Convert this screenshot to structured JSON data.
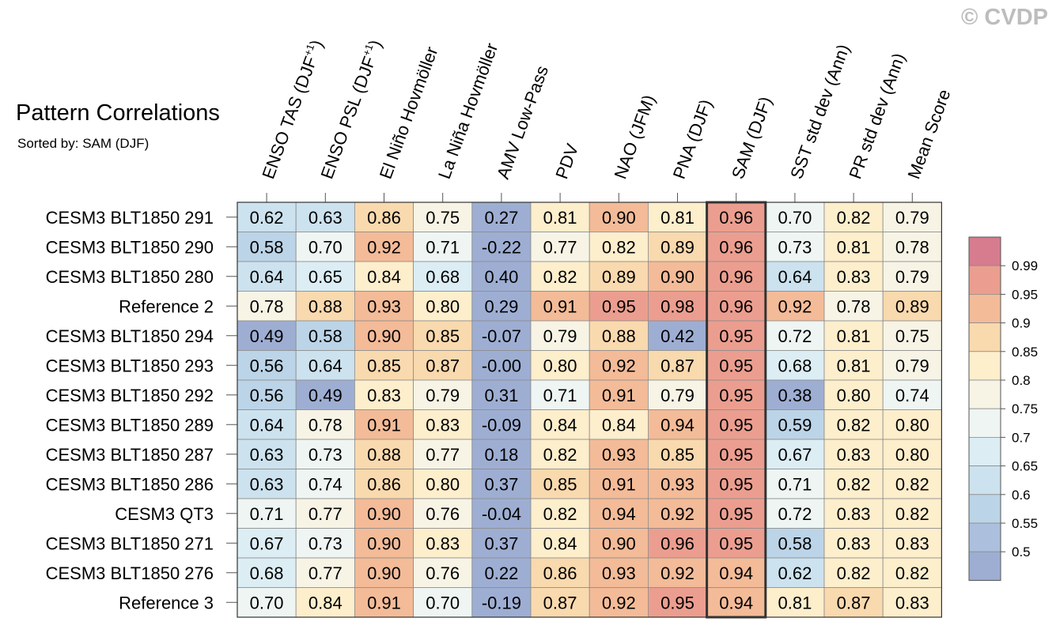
{
  "watermark": "© CVDP",
  "chart_data": {
    "type": "heatmap",
    "title": "Pattern Correlations",
    "subtitle": "Sorted by: SAM (DJF)",
    "columns": [
      {
        "main": "ENSO TAS (DJF",
        "sup": "+1",
        "tail": ")"
      },
      {
        "main": "ENSO PSL (DJF",
        "sup": "+1",
        "tail": ")"
      },
      {
        "main": "El Niño Hovmöller",
        "sup": "",
        "tail": ""
      },
      {
        "main": "La Niña Hovmöller",
        "sup": "",
        "tail": ""
      },
      {
        "main": "AMV Low-Pass",
        "sup": "",
        "tail": ""
      },
      {
        "main": "PDV",
        "sup": "",
        "tail": ""
      },
      {
        "main": "NAO (JFM)",
        "sup": "",
        "tail": ""
      },
      {
        "main": "PNA (DJF)",
        "sup": "",
        "tail": ""
      },
      {
        "main": "SAM (DJF)",
        "sup": "",
        "tail": ""
      },
      {
        "main": "SST std dev (Ann)",
        "sup": "",
        "tail": ""
      },
      {
        "main": "PR std dev (Ann)",
        "sup": "",
        "tail": ""
      },
      {
        "main": "Mean Score",
        "sup": "",
        "tail": ""
      }
    ],
    "rows": [
      {
        "name": "CESM3 BLT1850 291",
        "values": [
          "0.62",
          "0.63",
          "0.86",
          "0.75",
          "0.27",
          "0.81",
          "0.90",
          "0.81",
          "0.96",
          "0.70",
          "0.82",
          "0.79"
        ]
      },
      {
        "name": "CESM3 BLT1850 290",
        "values": [
          "0.58",
          "0.70",
          "0.92",
          "0.71",
          "-0.22",
          "0.77",
          "0.82",
          "0.89",
          "0.96",
          "0.73",
          "0.81",
          "0.78"
        ]
      },
      {
        "name": "CESM3 BLT1850 280",
        "values": [
          "0.64",
          "0.65",
          "0.84",
          "0.68",
          "0.40",
          "0.82",
          "0.89",
          "0.90",
          "0.96",
          "0.64",
          "0.83",
          "0.79"
        ]
      },
      {
        "name": "Reference 2",
        "values": [
          "0.78",
          "0.88",
          "0.93",
          "0.80",
          "0.29",
          "0.91",
          "0.95",
          "0.98",
          "0.96",
          "0.92",
          "0.78",
          "0.89"
        ]
      },
      {
        "name": "CESM3 BLT1850 294",
        "values": [
          "0.49",
          "0.58",
          "0.90",
          "0.85",
          "-0.07",
          "0.79",
          "0.88",
          "0.42",
          "0.95",
          "0.72",
          "0.81",
          "0.75"
        ]
      },
      {
        "name": "CESM3 BLT1850 293",
        "values": [
          "0.56",
          "0.64",
          "0.85",
          "0.87",
          "-0.00",
          "0.80",
          "0.92",
          "0.87",
          "0.95",
          "0.68",
          "0.81",
          "0.79"
        ]
      },
      {
        "name": "CESM3 BLT1850 292",
        "values": [
          "0.56",
          "0.49",
          "0.83",
          "0.79",
          "0.31",
          "0.71",
          "0.91",
          "0.79",
          "0.95",
          "0.38",
          "0.80",
          "0.74"
        ]
      },
      {
        "name": "CESM3 BLT1850 289",
        "values": [
          "0.64",
          "0.78",
          "0.91",
          "0.83",
          "-0.09",
          "0.84",
          "0.84",
          "0.94",
          "0.95",
          "0.59",
          "0.82",
          "0.80"
        ]
      },
      {
        "name": "CESM3 BLT1850 287",
        "values": [
          "0.63",
          "0.73",
          "0.88",
          "0.77",
          "0.18",
          "0.82",
          "0.93",
          "0.85",
          "0.95",
          "0.67",
          "0.83",
          "0.80"
        ]
      },
      {
        "name": "CESM3 BLT1850 286",
        "values": [
          "0.63",
          "0.74",
          "0.86",
          "0.80",
          "0.37",
          "0.85",
          "0.91",
          "0.93",
          "0.95",
          "0.71",
          "0.82",
          "0.82"
        ]
      },
      {
        "name": "CESM3 QT3",
        "values": [
          "0.71",
          "0.77",
          "0.90",
          "0.76",
          "-0.04",
          "0.82",
          "0.94",
          "0.92",
          "0.95",
          "0.72",
          "0.83",
          "0.82"
        ]
      },
      {
        "name": "CESM3 BLT1850 271",
        "values": [
          "0.67",
          "0.73",
          "0.90",
          "0.83",
          "0.37",
          "0.84",
          "0.90",
          "0.96",
          "0.95",
          "0.58",
          "0.83",
          "0.83"
        ]
      },
      {
        "name": "CESM3 BLT1850 276",
        "values": [
          "0.68",
          "0.77",
          "0.90",
          "0.76",
          "0.22",
          "0.86",
          "0.93",
          "0.92",
          "0.94",
          "0.62",
          "0.82",
          "0.82"
        ]
      },
      {
        "name": "Reference 3",
        "values": [
          "0.70",
          "0.84",
          "0.91",
          "0.70",
          "-0.19",
          "0.87",
          "0.92",
          "0.95",
          "0.94",
          "0.81",
          "0.87",
          "0.83"
        ]
      }
    ],
    "sorted_by": "SAM (DJF)",
    "highlight_column_index": 8,
    "colorbar": {
      "thresholds": [
        0.5,
        0.55,
        0.6,
        0.65,
        0.7,
        0.75,
        0.8,
        0.85,
        0.9,
        0.95,
        0.99
      ],
      "labels": [
        "0.5",
        "0.55",
        "0.6",
        "0.65",
        "0.7",
        "0.75",
        "0.8",
        "0.85",
        "0.9",
        "0.95",
        "0.99"
      ],
      "colors": [
        "#9eaed3",
        "#acc0dd",
        "#bcd4e7",
        "#cce2ee",
        "#dcedf4",
        "#eef5f3",
        "#f7f4e6",
        "#fdeecc",
        "#f9d9ae",
        "#f3bb98",
        "#eb9e8f",
        "#d67c8e"
      ]
    }
  }
}
